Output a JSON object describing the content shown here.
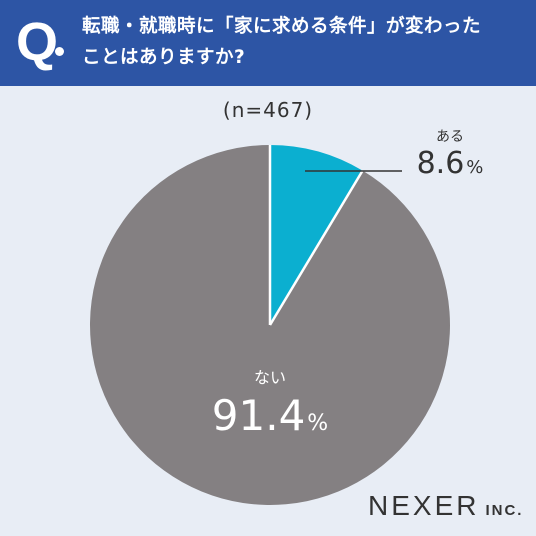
{
  "header": {
    "q_mark": "Q",
    "question": "転職・就職時に「家に求める条件」が変わった\nことはありますか?"
  },
  "sample_size": "(n=467)",
  "colors": {
    "header_bg": "#2d55a5",
    "background": "#e8edf5",
    "slice_yes": "#0bafd0",
    "slice_no": "#848082"
  },
  "chart_data": {
    "type": "pie",
    "title": "",
    "slices": [
      {
        "label": "ある",
        "value": 8.6,
        "value_text": "8.6",
        "unit": "%",
        "color": "#0bafd0"
      },
      {
        "label": "ない",
        "value": 91.4,
        "value_text": "91.4",
        "unit": "%",
        "color": "#848082"
      }
    ],
    "start_angle": "12 o'clock",
    "direction": "clockwise"
  },
  "logo": {
    "main": "NEXER",
    "sub": "INC."
  }
}
